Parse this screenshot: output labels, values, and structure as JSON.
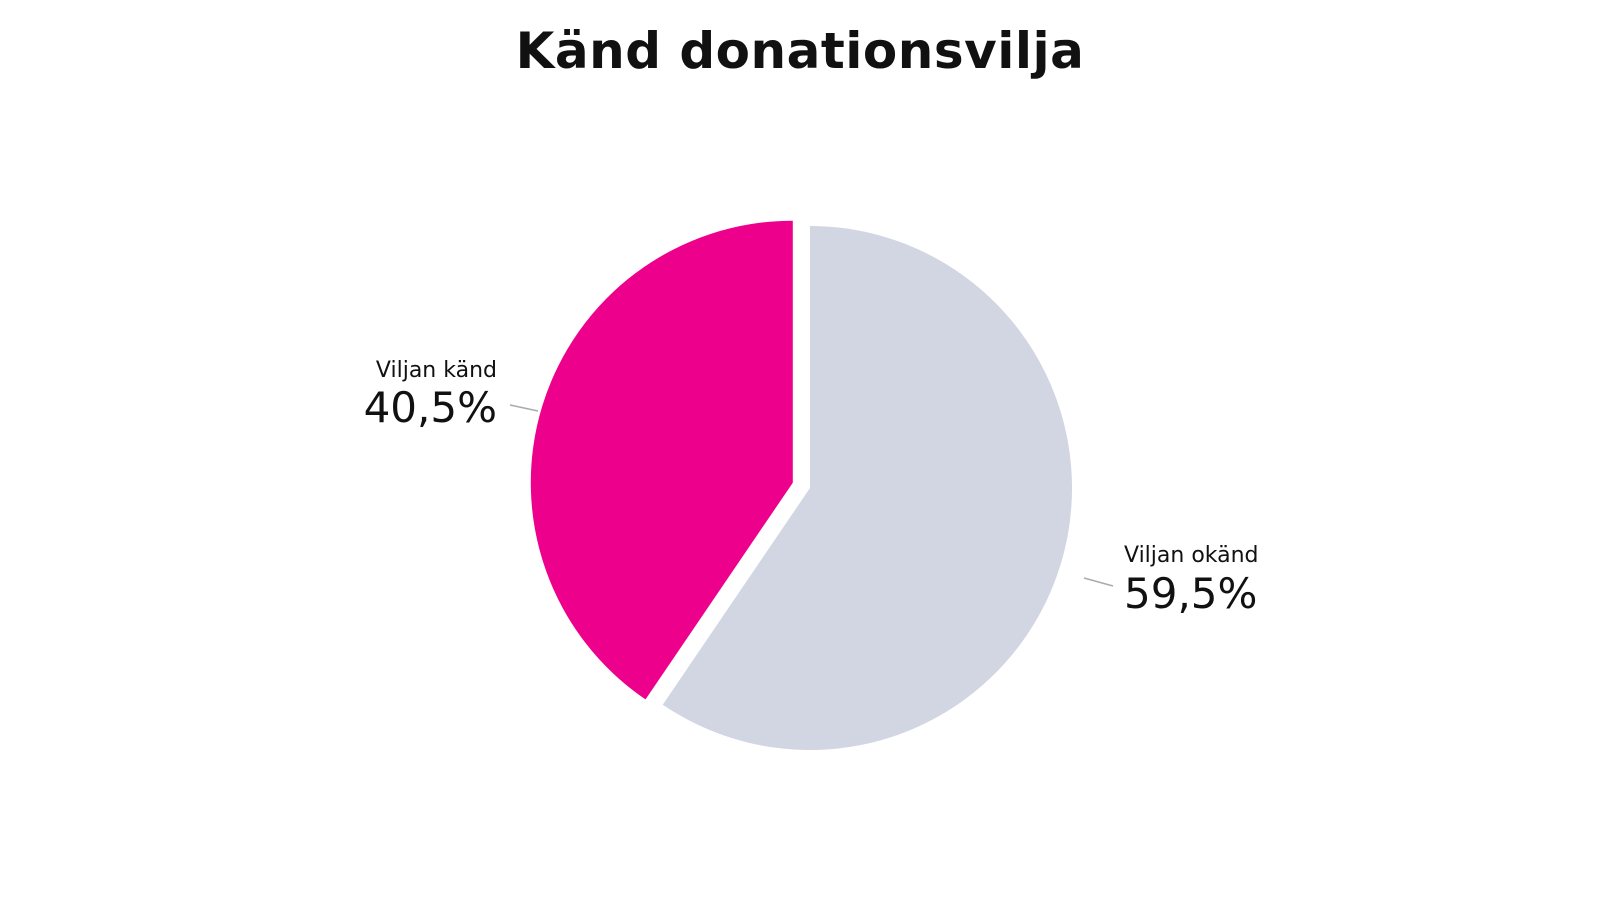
{
  "chart_data": {
    "type": "pie",
    "title": "Känd donationsvilja",
    "slices": [
      {
        "label": "Viljan känd",
        "value": 40.5,
        "display": "40,5%",
        "color": "#EC008C",
        "exploded": true
      },
      {
        "label": "Viljan okänd",
        "value": 59.5,
        "display": "59,5%",
        "color": "#D2D5E2",
        "exploded": false
      }
    ],
    "start_angle_deg": 0,
    "direction": "counterclockwise",
    "legend": "none",
    "labels_position": "outside"
  }
}
